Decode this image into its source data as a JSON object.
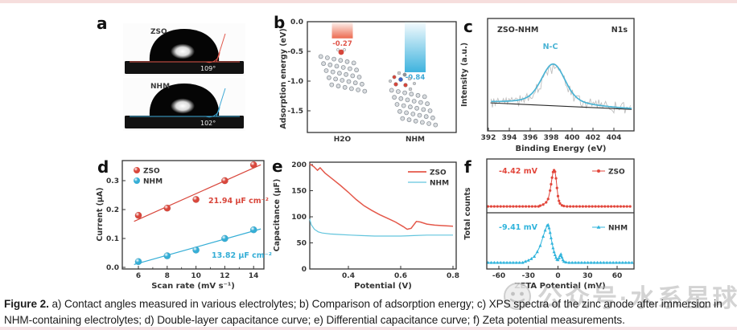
{
  "page": {
    "top_strip_color": "#f6dedd",
    "bottom_strip_color": "#f5e2e5",
    "background": "#ffffff"
  },
  "caption": {
    "label": "Figure 2.",
    "text": " a) Contact angles measured in various electrolytes; b) Comparison of adsorption energy; c) XPS spectra of the zinc anode after immersion in NHM-containing electrolytes; d) Double-layer capacitance curve; e) Differential capacitance curve; f) Zeta potential measurements."
  },
  "watermark": {
    "icon": "wechat-official-account-icon",
    "text": "公众号·水系星球",
    "color": "#bdbdbd"
  },
  "panels": {
    "a": {
      "label": "a",
      "images": [
        {
          "sample": "ZSO",
          "angle": "109°",
          "line_color": "#e0564a"
        },
        {
          "sample": "NHM",
          "angle": "102°",
          "line_color": "#3fa9d6"
        }
      ]
    },
    "b": {
      "label": "b"
    },
    "c": {
      "label": "c"
    },
    "d": {
      "label": "d"
    },
    "e": {
      "label": "e"
    },
    "f": {
      "label": "f"
    }
  },
  "chart_data": [
    {
      "panel": "b",
      "type": "bar",
      "categories": [
        "H2O",
        "NHM"
      ],
      "values": [
        -0.27,
        -0.84
      ],
      "value_labels": [
        "-0.27",
        "-0.84"
      ],
      "bar_colors_top": [
        "#fdf1ed",
        "#f3fafd"
      ],
      "bar_colors_bottom": [
        "#ec6a50",
        "#3eb3de"
      ],
      "label_colors": [
        "#e0564a",
        "#3fa9d6"
      ],
      "ylabel": "Adsorption energy (eV)",
      "yticks": [
        "0.0",
        "-0.5",
        "-1.0",
        "-1.5"
      ],
      "ylim": [
        -1.85,
        0
      ],
      "decorations": [
        "zn-lattice-with-h2o-molecule",
        "zn-lattice-with-nhm-molecule"
      ]
    },
    {
      "panel": "c",
      "type": "line",
      "title_left": "ZSO-NHM",
      "title_right": "N1s",
      "peak_label": "N-C",
      "peak_center_eV": 398.2,
      "xlabel": "Binding Energy (eV)",
      "ylabel": "Intensity (a.u.)",
      "xticks": [
        392,
        394,
        396,
        398,
        400,
        402,
        404
      ],
      "xlim": [
        392,
        405.9
      ],
      "series": [
        {
          "name": "raw signal",
          "color": "#bfbfbf"
        },
        {
          "name": "N-C fit",
          "color": "#4ab3d4"
        },
        {
          "name": "background",
          "color": "#2b2b2b"
        }
      ]
    },
    {
      "panel": "d",
      "type": "scatter",
      "x": [
        6,
        8,
        10,
        12,
        14
      ],
      "series": [
        {
          "name": "ZSO",
          "color": "#d9473c",
          "values": [
            0.18,
            0.205,
            0.235,
            0.3,
            0.355
          ],
          "fit_label": "21.94 μF cm⁻²"
        },
        {
          "name": "NHM",
          "color": "#35aed6",
          "values": [
            0.02,
            0.04,
            0.06,
            0.1,
            0.13
          ],
          "fit_label": "13.82 μF cm⁻²"
        }
      ],
      "xlabel": "Scan rate (mV s⁻¹)",
      "ylabel": "Current (μA)",
      "xticks": [
        6,
        8,
        10,
        12,
        14
      ],
      "yticks": [
        "0.0",
        "0.1",
        "0.2",
        "0.3"
      ],
      "xlim": [
        4.9,
        14.8
      ],
      "ylim": [
        0,
        0.37
      ],
      "legend_position": "top-left"
    },
    {
      "panel": "e",
      "type": "line",
      "xlabel": "Potential (V)",
      "ylabel": "Capacitance (μF)",
      "xticks": [
        "0.4",
        "0.6",
        "0.8"
      ],
      "yticks": [
        0,
        50,
        100,
        150,
        200
      ],
      "xlim": [
        0.252,
        0.805
      ],
      "ylim": [
        0,
        205
      ],
      "legend_position": "top-right",
      "series": [
        {
          "name": "ZSO",
          "color": "#e4584a",
          "points": [
            [
              0.252,
              201
            ],
            [
              0.268,
              196
            ],
            [
              0.282,
              189
            ],
            [
              0.292,
              194
            ],
            [
              0.31,
              184
            ],
            [
              0.34,
              172
            ],
            [
              0.37,
              160
            ],
            [
              0.4,
              147
            ],
            [
              0.43,
              133
            ],
            [
              0.46,
              121
            ],
            [
              0.49,
              112
            ],
            [
              0.52,
              104
            ],
            [
              0.55,
              97
            ],
            [
              0.58,
              90
            ],
            [
              0.61,
              81
            ],
            [
              0.625,
              76
            ],
            [
              0.64,
              78
            ],
            [
              0.66,
              91
            ],
            [
              0.675,
              90
            ],
            [
              0.7,
              86
            ],
            [
              0.73,
              84
            ],
            [
              0.76,
              83
            ],
            [
              0.8,
              82
            ]
          ]
        },
        {
          "name": "NHM",
          "color": "#63c5dd",
          "points": [
            [
              0.252,
              96
            ],
            [
              0.258,
              85
            ],
            [
              0.27,
              76
            ],
            [
              0.285,
              71
            ],
            [
              0.3,
              69
            ],
            [
              0.33,
              67
            ],
            [
              0.37,
              66
            ],
            [
              0.41,
              65
            ],
            [
              0.45,
              64
            ],
            [
              0.5,
              63
            ],
            [
              0.55,
              63
            ],
            [
              0.6,
              63
            ],
            [
              0.65,
              64
            ],
            [
              0.7,
              65
            ],
            [
              0.75,
              65
            ],
            [
              0.8,
              65
            ]
          ]
        }
      ]
    },
    {
      "panel": "f",
      "type": "distribution",
      "xlabel": "ZETA Potential (mV)",
      "ylabel": "Total counts",
      "xticks": [
        -60,
        -30,
        0,
        30,
        60
      ],
      "xlim": [
        -73,
        77
      ],
      "series": [
        {
          "name": "ZSO",
          "color": "#e2473c",
          "marker": "circle",
          "annotation": "-4.42 mV",
          "mean_mV": -4.42,
          "peak": [
            [
              -18,
              0.04
            ],
            [
              -15,
              0.07
            ],
            [
              -12,
              0.13
            ],
            [
              -10,
              0.22
            ],
            [
              -8,
              0.45
            ],
            [
              -7,
              0.62
            ],
            [
              -6,
              0.8
            ],
            [
              -5,
              0.95
            ],
            [
              -4,
              1.0
            ],
            [
              -3,
              0.96
            ],
            [
              -2,
              0.78
            ],
            [
              -1,
              0.52
            ],
            [
              0,
              0.3
            ],
            [
              1,
              0.17
            ],
            [
              2,
              0.1
            ],
            [
              4,
              0.05
            ],
            [
              6,
              0.03
            ]
          ]
        },
        {
          "name": "NHM",
          "color": "#30b4dc",
          "marker": "triangle",
          "annotation": "-9.41 mV",
          "mean_mV": -9.41,
          "peak": [
            [
              -33,
              0.05
            ],
            [
              -30,
              0.08
            ],
            [
              -27,
              0.12
            ],
            [
              -24,
              0.18
            ],
            [
              -21,
              0.3
            ],
            [
              -18,
              0.46
            ],
            [
              -15,
              0.7
            ],
            [
              -13,
              0.86
            ],
            [
              -11,
              0.98
            ],
            [
              -10,
              1.0
            ],
            [
              -9,
              0.92
            ],
            [
              -8,
              0.8
            ],
            [
              -7,
              0.66
            ],
            [
              -6,
              0.52
            ],
            [
              -5,
              0.4
            ],
            [
              -4,
              0.3
            ],
            [
              -3,
              0.22
            ],
            [
              -2,
              0.15
            ],
            [
              -1,
              0.1
            ],
            [
              0,
              0.09
            ],
            [
              1,
              0.14
            ],
            [
              2,
              0.2
            ],
            [
              3,
              0.24
            ],
            [
              4,
              0.16
            ],
            [
              5,
              0.09
            ],
            [
              6,
              0.05
            ],
            [
              8,
              0.03
            ]
          ]
        }
      ]
    }
  ]
}
